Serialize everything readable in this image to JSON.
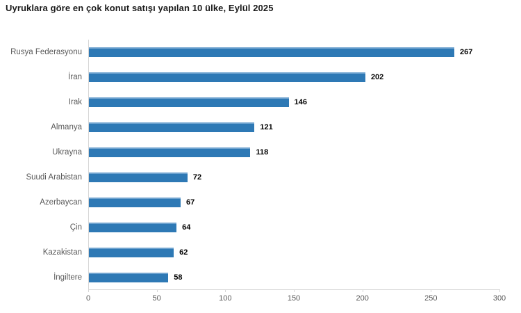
{
  "title": "Uyruklara göre en çok konut satışı yapılan 10 ülke, Eylül 2025",
  "colors": {
    "bar": "#2e79b5",
    "bar_top_edge": "#6fa3cf",
    "axis_line": "#d6d6d6",
    "category_label": "#595959",
    "value_label": "#000000",
    "title": "#1a1a1a",
    "background": "#ffffff"
  },
  "chart_data": {
    "type": "bar",
    "orientation": "horizontal",
    "title": "Uyruklara göre en çok konut satışı yapılan 10 ülke, Eylül 2025",
    "categories": [
      "Rusya Federasyonu",
      "İran",
      "Irak",
      "Almanya",
      "Ukrayna",
      "Suudi Arabistan",
      "Azerbaycan",
      "Çin",
      "Kazakistan",
      "İngiltere"
    ],
    "values": [
      267,
      202,
      146,
      121,
      118,
      72,
      67,
      64,
      62,
      58
    ],
    "xlabel": "",
    "ylabel": "",
    "xlim": [
      0,
      300
    ],
    "x_ticks": [
      0,
      50,
      100,
      150,
      200,
      250,
      300
    ],
    "grid": false,
    "legend": "none",
    "data_labels": true
  }
}
